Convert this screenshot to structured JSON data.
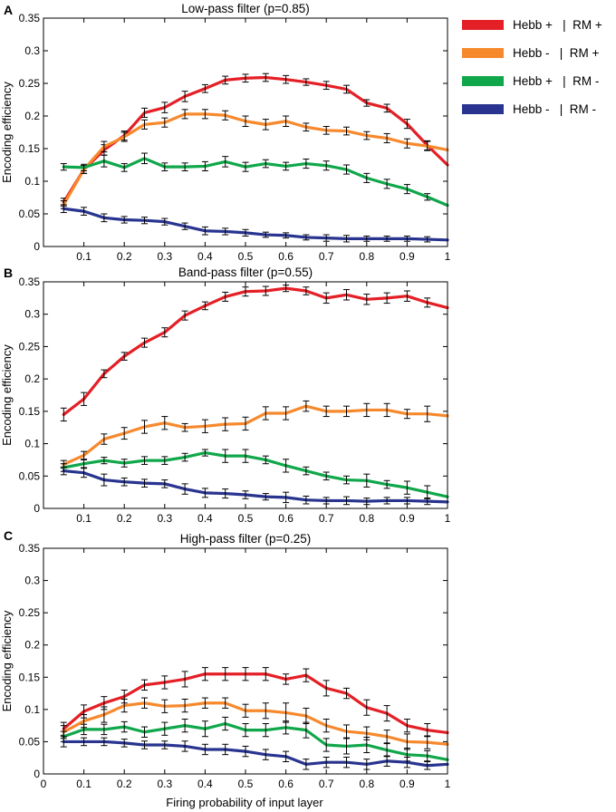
{
  "figure": {
    "x_axis_label": "Firing probability of input layer",
    "legend": [
      {
        "label": "Hebb +   |  RM +",
        "color": "#e41f26"
      },
      {
        "label": "Hebb -   |  RM +",
        "color": "#f7892d"
      },
      {
        "label": "Hebb +   |  RM -",
        "color": "#0fa74a"
      },
      {
        "label": "Hebb -   |  RM -",
        "color": "#28348f"
      }
    ]
  },
  "chart_data": [
    {
      "panel": "A",
      "type": "line",
      "title": "Low-pass filter (p=0.85)",
      "xlabel": "",
      "ylabel": "Encoding efficiency",
      "xlim": [
        0,
        1
      ],
      "ylim": [
        0,
        0.35
      ],
      "x": [
        0.05,
        0.1,
        0.15,
        0.2,
        0.25,
        0.3,
        0.35,
        0.4,
        0.45,
        0.5,
        0.55,
        0.6,
        0.65,
        0.7,
        0.75,
        0.8,
        0.85,
        0.9,
        0.95,
        1.0
      ],
      "xticks": [
        "0.1",
        "0.2",
        "0.3",
        "0.4",
        "0.5",
        "0.6",
        "0.7",
        "0.8",
        "0.9",
        "1"
      ],
      "yticks": [
        "0",
        "0.05",
        "0.1",
        "0.15",
        "0.2",
        "0.25",
        "0.3",
        "0.35"
      ],
      "series": [
        {
          "name": "Hebb + | RM +",
          "color": "#e41f26",
          "values": [
            0.068,
            0.118,
            0.148,
            0.17,
            0.205,
            0.213,
            0.23,
            0.242,
            0.255,
            0.258,
            0.259,
            0.256,
            0.252,
            0.247,
            0.241,
            0.22,
            0.212,
            0.188,
            0.155,
            0.125
          ],
          "errors": [
            0.006,
            0.006,
            0.008,
            0.007,
            0.007,
            0.008,
            0.008,
            0.006,
            0.006,
            0.006,
            0.006,
            0.006,
            0.005,
            0.006,
            0.006,
            0.005,
            0.006,
            0.007,
            0.007,
            0.0
          ]
        },
        {
          "name": "Hebb - | RM +",
          "color": "#f7892d",
          "values": [
            0.064,
            0.118,
            0.153,
            0.168,
            0.187,
            0.19,
            0.203,
            0.203,
            0.201,
            0.192,
            0.187,
            0.192,
            0.183,
            0.178,
            0.177,
            0.17,
            0.166,
            0.158,
            0.154,
            0.148
          ],
          "errors": [
            0.006,
            0.006,
            0.008,
            0.007,
            0.007,
            0.007,
            0.007,
            0.007,
            0.007,
            0.008,
            0.008,
            0.008,
            0.006,
            0.006,
            0.006,
            0.006,
            0.007,
            0.007,
            0.007,
            0.0
          ]
        },
        {
          "name": "Hebb + | RM -",
          "color": "#0fa74a",
          "values": [
            0.122,
            0.121,
            0.131,
            0.121,
            0.135,
            0.122,
            0.122,
            0.123,
            0.13,
            0.122,
            0.127,
            0.123,
            0.127,
            0.124,
            0.118,
            0.105,
            0.096,
            0.088,
            0.076,
            0.063
          ],
          "errors": [
            0.005,
            0.005,
            0.009,
            0.006,
            0.008,
            0.006,
            0.006,
            0.007,
            0.008,
            0.007,
            0.006,
            0.006,
            0.007,
            0.007,
            0.007,
            0.007,
            0.007,
            0.007,
            0.005,
            0.0
          ]
        },
        {
          "name": "Hebb - | RM -",
          "color": "#28348f",
          "values": [
            0.058,
            0.054,
            0.044,
            0.041,
            0.04,
            0.038,
            0.031,
            0.024,
            0.023,
            0.021,
            0.018,
            0.017,
            0.014,
            0.013,
            0.012,
            0.012,
            0.012,
            0.012,
            0.011,
            0.01
          ],
          "errors": [
            0.006,
            0.006,
            0.006,
            0.005,
            0.005,
            0.005,
            0.005,
            0.006,
            0.005,
            0.005,
            0.004,
            0.004,
            0.004,
            0.005,
            0.005,
            0.004,
            0.004,
            0.004,
            0.004,
            0.0
          ]
        }
      ]
    },
    {
      "panel": "B",
      "type": "line",
      "title": "Band-pass filter (p=0.55)",
      "xlabel": "",
      "ylabel": "Encoding efficiency",
      "xlim": [
        0,
        1
      ],
      "ylim": [
        0,
        0.35
      ],
      "x": [
        0.05,
        0.1,
        0.15,
        0.2,
        0.25,
        0.3,
        0.35,
        0.4,
        0.45,
        0.5,
        0.55,
        0.6,
        0.65,
        0.7,
        0.75,
        0.8,
        0.85,
        0.9,
        0.95,
        1.0
      ],
      "xticks": [
        "0.1",
        "0.2",
        "0.3",
        "0.4",
        "0.5",
        "0.6",
        "0.7",
        "0.8",
        "0.9",
        "1"
      ],
      "yticks": [
        "0",
        "0.05",
        "0.1",
        "0.15",
        "0.2",
        "0.25",
        "0.3",
        "0.35"
      ],
      "series": [
        {
          "name": "Hebb + | RM +",
          "color": "#e41f26",
          "values": [
            0.145,
            0.169,
            0.208,
            0.235,
            0.256,
            0.272,
            0.298,
            0.313,
            0.327,
            0.335,
            0.336,
            0.34,
            0.336,
            0.325,
            0.33,
            0.323,
            0.325,
            0.328,
            0.318,
            0.31
          ],
          "errors": [
            0.01,
            0.01,
            0.006,
            0.006,
            0.007,
            0.007,
            0.007,
            0.006,
            0.007,
            0.007,
            0.007,
            0.005,
            0.006,
            0.008,
            0.008,
            0.008,
            0.008,
            0.008,
            0.007,
            0.0
          ]
        },
        {
          "name": "Hebb - | RM +",
          "color": "#f7892d",
          "values": [
            0.068,
            0.082,
            0.107,
            0.116,
            0.126,
            0.132,
            0.125,
            0.127,
            0.13,
            0.131,
            0.147,
            0.147,
            0.158,
            0.15,
            0.15,
            0.152,
            0.152,
            0.146,
            0.146,
            0.143
          ],
          "errors": [
            0.006,
            0.006,
            0.008,
            0.009,
            0.01,
            0.01,
            0.006,
            0.01,
            0.01,
            0.01,
            0.01,
            0.01,
            0.008,
            0.008,
            0.008,
            0.01,
            0.01,
            0.007,
            0.012,
            0.0
          ]
        },
        {
          "name": "Hebb + | RM -",
          "color": "#0fa74a",
          "values": [
            0.063,
            0.069,
            0.074,
            0.07,
            0.074,
            0.074,
            0.079,
            0.086,
            0.081,
            0.081,
            0.075,
            0.066,
            0.058,
            0.05,
            0.044,
            0.043,
            0.037,
            0.032,
            0.025,
            0.018
          ],
          "errors": [
            0.006,
            0.006,
            0.005,
            0.006,
            0.006,
            0.006,
            0.006,
            0.005,
            0.01,
            0.01,
            0.006,
            0.01,
            0.006,
            0.006,
            0.006,
            0.01,
            0.006,
            0.01,
            0.01,
            0.0
          ]
        },
        {
          "name": "Hebb - | RM -",
          "color": "#28348f",
          "values": [
            0.058,
            0.055,
            0.044,
            0.041,
            0.039,
            0.038,
            0.03,
            0.024,
            0.023,
            0.021,
            0.018,
            0.017,
            0.013,
            0.012,
            0.012,
            0.011,
            0.012,
            0.012,
            0.011,
            0.01
          ],
          "errors": [
            0.006,
            0.007,
            0.009,
            0.006,
            0.006,
            0.006,
            0.008,
            0.007,
            0.007,
            0.006,
            0.005,
            0.008,
            0.006,
            0.005,
            0.006,
            0.005,
            0.005,
            0.005,
            0.005,
            0.0
          ]
        }
      ]
    },
    {
      "panel": "C",
      "type": "line",
      "title": "High-pass filter (p=0.25)",
      "xlabel": "Firing probability of input layer",
      "ylabel": "Encoding efficiency",
      "xlim": [
        0,
        1
      ],
      "ylim": [
        0,
        0.35
      ],
      "x": [
        0.05,
        0.1,
        0.15,
        0.2,
        0.25,
        0.3,
        0.35,
        0.4,
        0.45,
        0.5,
        0.55,
        0.6,
        0.65,
        0.7,
        0.75,
        0.8,
        0.85,
        0.9,
        0.95,
        1.0
      ],
      "xticks": [
        "0",
        "0.1",
        "0.2",
        "0.3",
        "0.4",
        "0.5",
        "0.6",
        "0.7",
        "0.8",
        "0.9",
        "1"
      ],
      "yticks": [
        "0",
        "0.05",
        "0.1",
        "0.15",
        "0.2",
        "0.25",
        "0.3",
        "0.35"
      ],
      "series": [
        {
          "name": "Hebb + | RM +",
          "color": "#e41f26",
          "values": [
            0.07,
            0.097,
            0.11,
            0.12,
            0.138,
            0.142,
            0.147,
            0.155,
            0.155,
            0.155,
            0.155,
            0.147,
            0.153,
            0.133,
            0.125,
            0.103,
            0.094,
            0.075,
            0.068,
            0.064
          ],
          "errors": [
            0.01,
            0.01,
            0.01,
            0.01,
            0.008,
            0.01,
            0.012,
            0.01,
            0.01,
            0.01,
            0.01,
            0.008,
            0.01,
            0.012,
            0.008,
            0.012,
            0.012,
            0.01,
            0.01,
            0.0
          ]
        },
        {
          "name": "Hebb - | RM +",
          "color": "#f7892d",
          "values": [
            0.065,
            0.082,
            0.092,
            0.106,
            0.11,
            0.105,
            0.106,
            0.11,
            0.11,
            0.098,
            0.098,
            0.095,
            0.09,
            0.075,
            0.066,
            0.063,
            0.058,
            0.05,
            0.049,
            0.046
          ],
          "errors": [
            0.01,
            0.01,
            0.012,
            0.01,
            0.008,
            0.01,
            0.01,
            0.008,
            0.008,
            0.01,
            0.012,
            0.015,
            0.012,
            0.01,
            0.01,
            0.01,
            0.01,
            0.012,
            0.01,
            0.0
          ]
        },
        {
          "name": "Hebb + | RM -",
          "color": "#0fa74a",
          "values": [
            0.058,
            0.069,
            0.069,
            0.073,
            0.065,
            0.07,
            0.075,
            0.07,
            0.078,
            0.068,
            0.068,
            0.072,
            0.068,
            0.045,
            0.043,
            0.045,
            0.037,
            0.03,
            0.028,
            0.022
          ],
          "errors": [
            0.008,
            0.008,
            0.008,
            0.008,
            0.008,
            0.01,
            0.01,
            0.012,
            0.01,
            0.01,
            0.01,
            0.01,
            0.012,
            0.01,
            0.012,
            0.012,
            0.01,
            0.01,
            0.008,
            0.0
          ]
        },
        {
          "name": "Hebb - | RM -",
          "color": "#28348f",
          "values": [
            0.05,
            0.05,
            0.05,
            0.048,
            0.045,
            0.045,
            0.043,
            0.038,
            0.038,
            0.035,
            0.03,
            0.027,
            0.015,
            0.018,
            0.018,
            0.015,
            0.02,
            0.018,
            0.013,
            0.015
          ],
          "errors": [
            0.008,
            0.006,
            0.006,
            0.006,
            0.006,
            0.006,
            0.008,
            0.008,
            0.008,
            0.008,
            0.008,
            0.008,
            0.008,
            0.008,
            0.008,
            0.008,
            0.008,
            0.008,
            0.006,
            0.0
          ]
        }
      ]
    }
  ]
}
